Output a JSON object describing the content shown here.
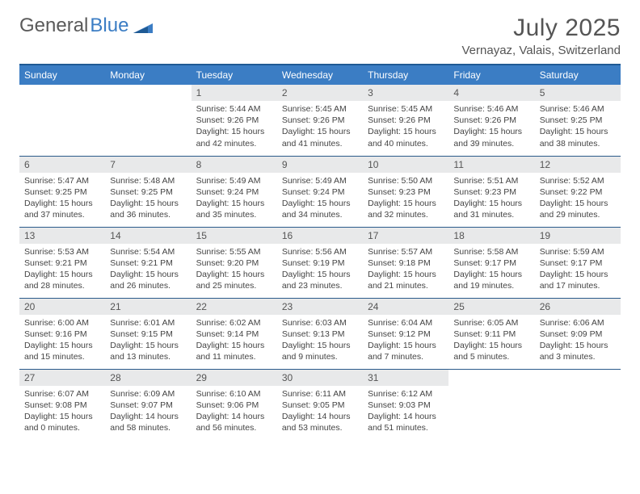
{
  "logo": {
    "text1": "General",
    "text2": "Blue"
  },
  "title": "July 2025",
  "location": "Vernayaz, Valais, Switzerland",
  "headers": [
    "Sunday",
    "Monday",
    "Tuesday",
    "Wednesday",
    "Thursday",
    "Friday",
    "Saturday"
  ],
  "colors": {
    "header_bg": "#3b7dc4",
    "header_border": "#1f5a94",
    "daynum_bg": "#e8e9ea",
    "row_border": "#2a5a8a",
    "text": "#555555"
  },
  "weeks": [
    [
      null,
      null,
      {
        "n": "1",
        "sr": "5:44 AM",
        "ss": "9:26 PM",
        "dl": "15 hours and 42 minutes."
      },
      {
        "n": "2",
        "sr": "5:45 AM",
        "ss": "9:26 PM",
        "dl": "15 hours and 41 minutes."
      },
      {
        "n": "3",
        "sr": "5:45 AM",
        "ss": "9:26 PM",
        "dl": "15 hours and 40 minutes."
      },
      {
        "n": "4",
        "sr": "5:46 AM",
        "ss": "9:26 PM",
        "dl": "15 hours and 39 minutes."
      },
      {
        "n": "5",
        "sr": "5:46 AM",
        "ss": "9:25 PM",
        "dl": "15 hours and 38 minutes."
      }
    ],
    [
      {
        "n": "6",
        "sr": "5:47 AM",
        "ss": "9:25 PM",
        "dl": "15 hours and 37 minutes."
      },
      {
        "n": "7",
        "sr": "5:48 AM",
        "ss": "9:25 PM",
        "dl": "15 hours and 36 minutes."
      },
      {
        "n": "8",
        "sr": "5:49 AM",
        "ss": "9:24 PM",
        "dl": "15 hours and 35 minutes."
      },
      {
        "n": "9",
        "sr": "5:49 AM",
        "ss": "9:24 PM",
        "dl": "15 hours and 34 minutes."
      },
      {
        "n": "10",
        "sr": "5:50 AM",
        "ss": "9:23 PM",
        "dl": "15 hours and 32 minutes."
      },
      {
        "n": "11",
        "sr": "5:51 AM",
        "ss": "9:23 PM",
        "dl": "15 hours and 31 minutes."
      },
      {
        "n": "12",
        "sr": "5:52 AM",
        "ss": "9:22 PM",
        "dl": "15 hours and 29 minutes."
      }
    ],
    [
      {
        "n": "13",
        "sr": "5:53 AM",
        "ss": "9:21 PM",
        "dl": "15 hours and 28 minutes."
      },
      {
        "n": "14",
        "sr": "5:54 AM",
        "ss": "9:21 PM",
        "dl": "15 hours and 26 minutes."
      },
      {
        "n": "15",
        "sr": "5:55 AM",
        "ss": "9:20 PM",
        "dl": "15 hours and 25 minutes."
      },
      {
        "n": "16",
        "sr": "5:56 AM",
        "ss": "9:19 PM",
        "dl": "15 hours and 23 minutes."
      },
      {
        "n": "17",
        "sr": "5:57 AM",
        "ss": "9:18 PM",
        "dl": "15 hours and 21 minutes."
      },
      {
        "n": "18",
        "sr": "5:58 AM",
        "ss": "9:17 PM",
        "dl": "15 hours and 19 minutes."
      },
      {
        "n": "19",
        "sr": "5:59 AM",
        "ss": "9:17 PM",
        "dl": "15 hours and 17 minutes."
      }
    ],
    [
      {
        "n": "20",
        "sr": "6:00 AM",
        "ss": "9:16 PM",
        "dl": "15 hours and 15 minutes."
      },
      {
        "n": "21",
        "sr": "6:01 AM",
        "ss": "9:15 PM",
        "dl": "15 hours and 13 minutes."
      },
      {
        "n": "22",
        "sr": "6:02 AM",
        "ss": "9:14 PM",
        "dl": "15 hours and 11 minutes."
      },
      {
        "n": "23",
        "sr": "6:03 AM",
        "ss": "9:13 PM",
        "dl": "15 hours and 9 minutes."
      },
      {
        "n": "24",
        "sr": "6:04 AM",
        "ss": "9:12 PM",
        "dl": "15 hours and 7 minutes."
      },
      {
        "n": "25",
        "sr": "6:05 AM",
        "ss": "9:11 PM",
        "dl": "15 hours and 5 minutes."
      },
      {
        "n": "26",
        "sr": "6:06 AM",
        "ss": "9:09 PM",
        "dl": "15 hours and 3 minutes."
      }
    ],
    [
      {
        "n": "27",
        "sr": "6:07 AM",
        "ss": "9:08 PM",
        "dl": "15 hours and 0 minutes."
      },
      {
        "n": "28",
        "sr": "6:09 AM",
        "ss": "9:07 PM",
        "dl": "14 hours and 58 minutes."
      },
      {
        "n": "29",
        "sr": "6:10 AM",
        "ss": "9:06 PM",
        "dl": "14 hours and 56 minutes."
      },
      {
        "n": "30",
        "sr": "6:11 AM",
        "ss": "9:05 PM",
        "dl": "14 hours and 53 minutes."
      },
      {
        "n": "31",
        "sr": "6:12 AM",
        "ss": "9:03 PM",
        "dl": "14 hours and 51 minutes."
      },
      null,
      null
    ]
  ],
  "labels": {
    "sunrise": "Sunrise:",
    "sunset": "Sunset:",
    "daylight": "Daylight:"
  }
}
